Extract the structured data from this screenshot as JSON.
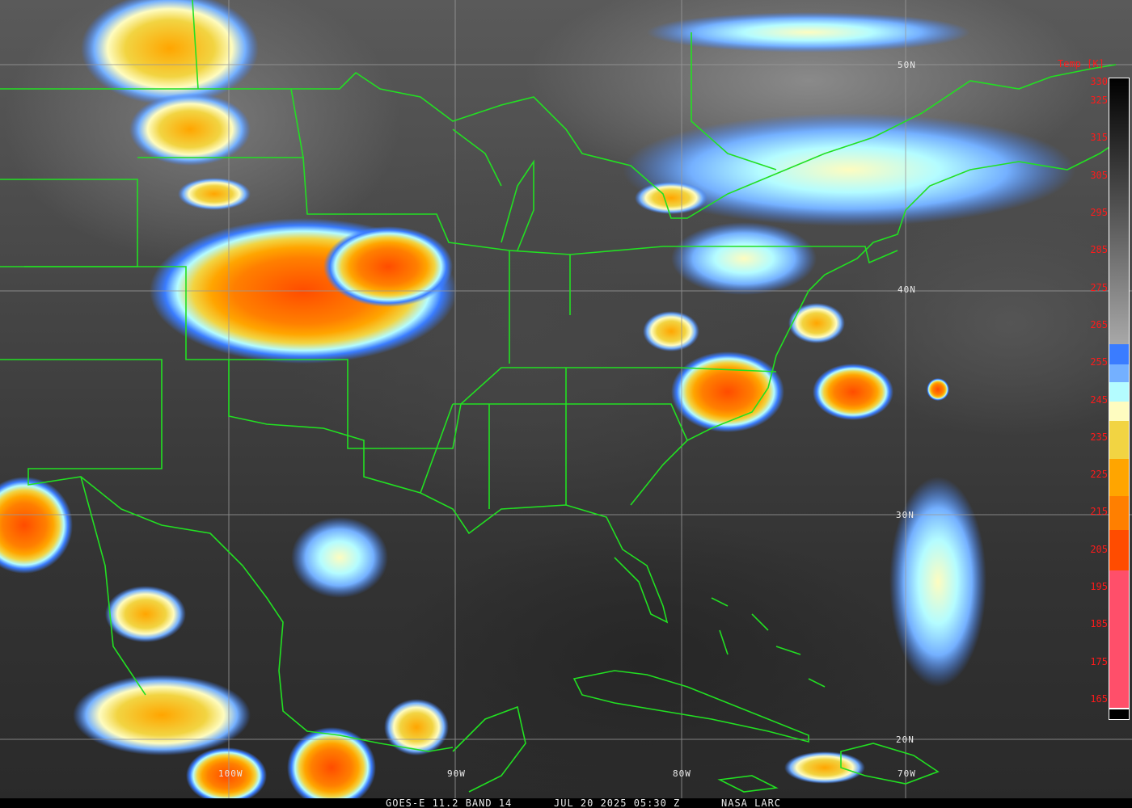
{
  "footer": {
    "satellite": "GOES-E 11.2 BAND 14",
    "datetime": "JUL 20 2025 05:30 Z",
    "source": "NASA LARC"
  },
  "colorbar": {
    "title": "Temp [K]",
    "ticks": [
      "330",
      "325",
      "315",
      "305",
      "295",
      "285",
      "275",
      "265",
      "255",
      "245",
      "235",
      "225",
      "215",
      "205",
      "195",
      "185",
      "175",
      "165"
    ],
    "colors": {
      "gray_top": "#000000",
      "gray_bottom": "#a8a8a8",
      "blue": "#3a7cff",
      "light_blue": "#74b0ff",
      "cyan": "#b4fcff",
      "pale_yellow": "#fefcc0",
      "yellow": "#f2d442",
      "orange": "#ffa500",
      "dark_orange": "#ff7f00",
      "red_orange": "#ff4c00",
      "pink": "#ff4f6a"
    }
  },
  "grid": {
    "latitudes": [
      "50N",
      "40N",
      "30N",
      "20N"
    ],
    "longitudes": [
      "100W",
      "90W",
      "80W",
      "70W"
    ]
  },
  "colors": {
    "borders": "#22e022",
    "grid": "#9a9a9a"
  }
}
